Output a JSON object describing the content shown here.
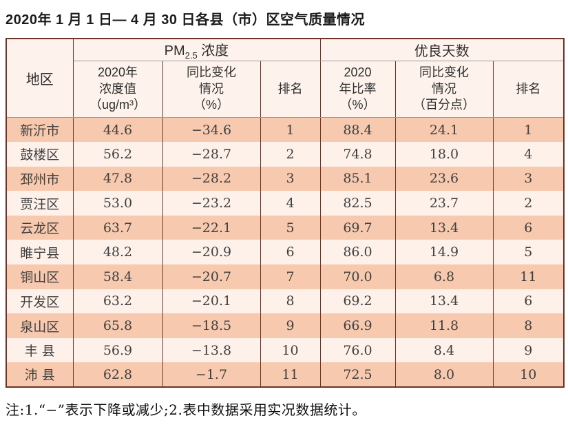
{
  "title": "2020年 1 月 1 日— 4 月 30 日各县（市）区空气质量情况",
  "table": {
    "region_header": "地区",
    "pm_group": {
      "prefix": "PM",
      "sub": "2.5",
      "suffix": " 浓度"
    },
    "good_group_label": "优良天数",
    "sub_headers": {
      "pm_value": "2020年\n浓度值\n（ug/m³）",
      "pm_change": "同比变化\n情况\n（%）",
      "pm_rank": "排名",
      "good_ratio": "2020\n年比率\n（%）",
      "good_change": "同比变化\n情况\n（百分点）",
      "good_rank": "排名"
    },
    "rows": [
      {
        "region": "新沂市",
        "pm_value": "44.6",
        "pm_change": "−34.6",
        "pm_rank": "1",
        "good_ratio": "88.4",
        "good_change": "24.1",
        "good_rank": "1"
      },
      {
        "region": "鼓楼区",
        "pm_value": "56.2",
        "pm_change": "−28.7",
        "pm_rank": "2",
        "good_ratio": "74.8",
        "good_change": "18.0",
        "good_rank": "4"
      },
      {
        "region": "邳州市",
        "pm_value": "47.8",
        "pm_change": "−28.2",
        "pm_rank": "3",
        "good_ratio": "85.1",
        "good_change": "23.6",
        "good_rank": "3"
      },
      {
        "region": "贾汪区",
        "pm_value": "53.0",
        "pm_change": "−23.2",
        "pm_rank": "4",
        "good_ratio": "82.5",
        "good_change": "23.7",
        "good_rank": "2"
      },
      {
        "region": "云龙区",
        "pm_value": "63.7",
        "pm_change": "−22.1",
        "pm_rank": "5",
        "good_ratio": "69.7",
        "good_change": "13.4",
        "good_rank": "6"
      },
      {
        "region": "睢宁县",
        "pm_value": "48.2",
        "pm_change": "−20.9",
        "pm_rank": "6",
        "good_ratio": "86.0",
        "good_change": "14.9",
        "good_rank": "5"
      },
      {
        "region": "铜山区",
        "pm_value": "58.4",
        "pm_change": "−20.7",
        "pm_rank": "7",
        "good_ratio": "70.0",
        "good_change": "6.8",
        "good_rank": "11"
      },
      {
        "region": "开发区",
        "pm_value": "63.2",
        "pm_change": "−20.1",
        "pm_rank": "8",
        "good_ratio": "69.2",
        "good_change": "13.4",
        "good_rank": "6"
      },
      {
        "region": "泉山区",
        "pm_value": "65.8",
        "pm_change": "−18.5",
        "pm_rank": "9",
        "good_ratio": "66.9",
        "good_change": "11.8",
        "good_rank": "8"
      },
      {
        "region": "丰 县",
        "pm_value": "56.9",
        "pm_change": "−13.8",
        "pm_rank": "10",
        "good_ratio": "76.0",
        "good_change": "8.4",
        "good_rank": "9"
      },
      {
        "region": "沛 县",
        "pm_value": "62.8",
        "pm_change": "−1.7",
        "pm_rank": "11",
        "good_ratio": "72.5",
        "good_change": "8.0",
        "good_rank": "10"
      }
    ]
  },
  "note": "注:1.“−”表示下降或减少;2.表中数据采用实况数据统计。",
  "colors": {
    "border": "#6d3328",
    "divider": "#9a9a9a",
    "header_bg": "#fdf3ec",
    "row_salmon": "#f7c9ae",
    "row_light": "#fdf1ea"
  },
  "chart_data": {
    "type": "table",
    "columns": [
      "地区",
      "2020年浓度值（ug/m³）",
      "同比变化情况（%）",
      "PM2.5排名",
      "2020年比率（%）",
      "同比变化情况（百分点）",
      "优良天数排名"
    ],
    "rows": [
      [
        "新沂市",
        44.6,
        -34.6,
        1,
        88.4,
        24.1,
        1
      ],
      [
        "鼓楼区",
        56.2,
        -28.7,
        2,
        74.8,
        18.0,
        4
      ],
      [
        "邳州市",
        47.8,
        -28.2,
        3,
        85.1,
        23.6,
        3
      ],
      [
        "贾汪区",
        53.0,
        -23.2,
        4,
        82.5,
        23.7,
        2
      ],
      [
        "云龙区",
        63.7,
        -22.1,
        5,
        69.7,
        13.4,
        6
      ],
      [
        "睢宁县",
        48.2,
        -20.9,
        6,
        86.0,
        14.9,
        5
      ],
      [
        "铜山区",
        58.4,
        -20.7,
        7,
        70.0,
        6.8,
        11
      ],
      [
        "开发区",
        63.2,
        -20.1,
        8,
        69.2,
        13.4,
        6
      ],
      [
        "泉山区",
        65.8,
        -18.5,
        9,
        66.9,
        11.8,
        8
      ],
      [
        "丰县",
        56.9,
        -13.8,
        10,
        76.0,
        8.4,
        9
      ],
      [
        "沛县",
        62.8,
        -1.7,
        11,
        72.5,
        8.0,
        10
      ]
    ],
    "title": "2020年1月1日—4月30日各县（市）区空气质量情况"
  }
}
